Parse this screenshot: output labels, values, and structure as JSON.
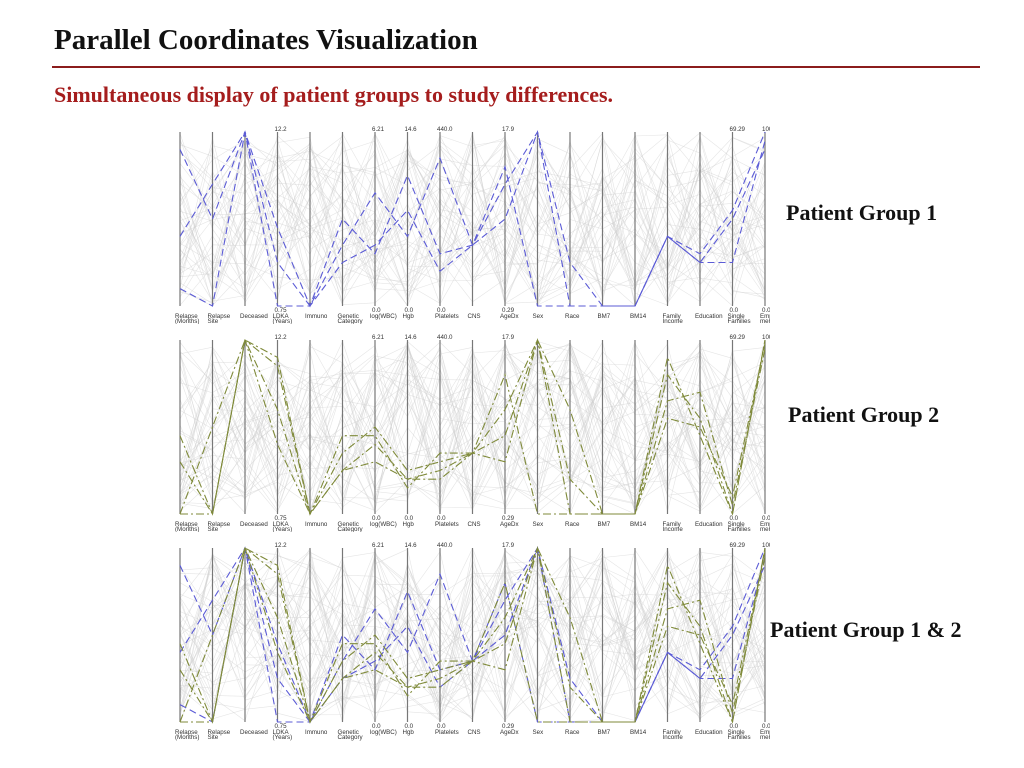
{
  "title": "Parallel Coordinates Visualization",
  "subtitle": "Simultaneous display of patient groups to study differences.",
  "panels": [
    {
      "label": "Patient Group 1",
      "groups": [
        "g1"
      ]
    },
    {
      "label": "Patient Group 2",
      "groups": [
        "g2"
      ]
    },
    {
      "label": "Patient Group 1 & 2",
      "groups": [
        "g1",
        "g2"
      ]
    }
  ],
  "axes": [
    {
      "label": [
        "Relapse",
        "(Months)"
      ],
      "max": "",
      "min": ""
    },
    {
      "label": [
        "Relapse",
        "Site"
      ],
      "max": "",
      "min": ""
    },
    {
      "label": [
        "Deceased"
      ],
      "max": "",
      "min": ""
    },
    {
      "label": [
        "LDKA",
        "(Years)"
      ],
      "max": "12.2",
      "min": "0.75"
    },
    {
      "label": [
        "Immuno"
      ],
      "max": "",
      "min": ""
    },
    {
      "label": [
        "Genetic",
        "Category"
      ],
      "max": "",
      "min": ""
    },
    {
      "label": [
        "log(WBC)"
      ],
      "max": "6.21",
      "min": "0.0"
    },
    {
      "label": [
        "Hgb"
      ],
      "max": "14.6",
      "min": "0.0"
    },
    {
      "label": [
        "Platelets"
      ],
      "max": "440.0",
      "min": "0.0"
    },
    {
      "label": [
        "CNS"
      ],
      "max": "",
      "min": ""
    },
    {
      "label": [
        "AgeDx"
      ],
      "max": "17.9",
      "min": "0.29"
    },
    {
      "label": [
        "Sex"
      ],
      "max": "",
      "min": ""
    },
    {
      "label": [
        "Race"
      ],
      "max": "",
      "min": ""
    },
    {
      "label": [
        "BM7"
      ],
      "max": "",
      "min": ""
    },
    {
      "label": [
        "BM14"
      ],
      "max": "",
      "min": ""
    },
    {
      "label": [
        "Family",
        "Income"
      ],
      "max": "",
      "min": ""
    },
    {
      "label": [
        "Education"
      ],
      "max": "",
      "min": ""
    },
    {
      "label": [
        "Single",
        "Families"
      ],
      "max": "69.29",
      "min": "0.0"
    },
    {
      "label": [
        "Employ-",
        "ment"
      ],
      "max": "100.0",
      "min": "0.0"
    }
  ],
  "colors": {
    "group1": "#5b5bd6",
    "group2": "#7f8a3a",
    "background_lines": "#cfcfcf",
    "title_rule": "#8b1c1c",
    "subtitle": "#a51d1d"
  },
  "chart_data": [
    {
      "type": "parallel-coordinates",
      "axes_count": 19,
      "series": [
        {
          "key": "g1",
          "values": [
            0.9,
            0.5,
            1.0,
            0.45,
            0.0,
            0.5,
            0.3,
            0.75,
            0.3,
            0.35,
            0.7,
            1.0,
            0.25,
            0.0,
            0.0,
            0.4,
            0.25,
            0.25,
            0.95
          ]
        },
        {
          "key": "g1",
          "values": [
            0.1,
            0.0,
            1.0,
            0.25,
            0.0,
            0.35,
            0.65,
            0.4,
            0.85,
            0.35,
            0.8,
            0.0,
            0.0,
            0.0,
            0.0,
            0.4,
            0.3,
            0.55,
            1.0
          ]
        },
        {
          "key": "g1",
          "values": [
            0.4,
            0.7,
            1.0,
            0.0,
            0.0,
            0.25,
            0.35,
            0.55,
            0.2,
            0.35,
            0.5,
            1.0,
            0.0,
            0.0,
            0.0,
            0.4,
            0.25,
            0.5,
            0.9
          ]
        },
        {
          "key": "g2",
          "values": [
            0.45,
            0.0,
            1.0,
            0.85,
            0.0,
            0.25,
            0.3,
            0.2,
            0.25,
            0.35,
            0.45,
            1.0,
            0.2,
            0.0,
            0.0,
            0.8,
            0.55,
            0.0,
            1.0
          ]
        },
        {
          "key": "g2",
          "values": [
            0.0,
            0.5,
            1.0,
            0.6,
            0.0,
            0.45,
            0.45,
            0.15,
            0.35,
            0.35,
            0.8,
            0.0,
            0.0,
            0.0,
            0.0,
            0.65,
            0.7,
            0.05,
            0.95
          ]
        },
        {
          "key": "g2",
          "values": [
            0.3,
            0.0,
            1.0,
            0.9,
            0.0,
            0.35,
            0.5,
            0.25,
            0.3,
            0.35,
            0.6,
            1.0,
            0.6,
            0.0,
            0.0,
            0.9,
            0.45,
            0.0,
            1.0
          ]
        },
        {
          "key": "g2",
          "values": [
            0.0,
            0.0,
            1.0,
            0.4,
            0.0,
            0.25,
            0.4,
            0.2,
            0.2,
            0.35,
            0.3,
            1.0,
            0.0,
            0.0,
            0.0,
            0.55,
            0.5,
            0.1,
            0.98
          ]
        }
      ]
    }
  ]
}
